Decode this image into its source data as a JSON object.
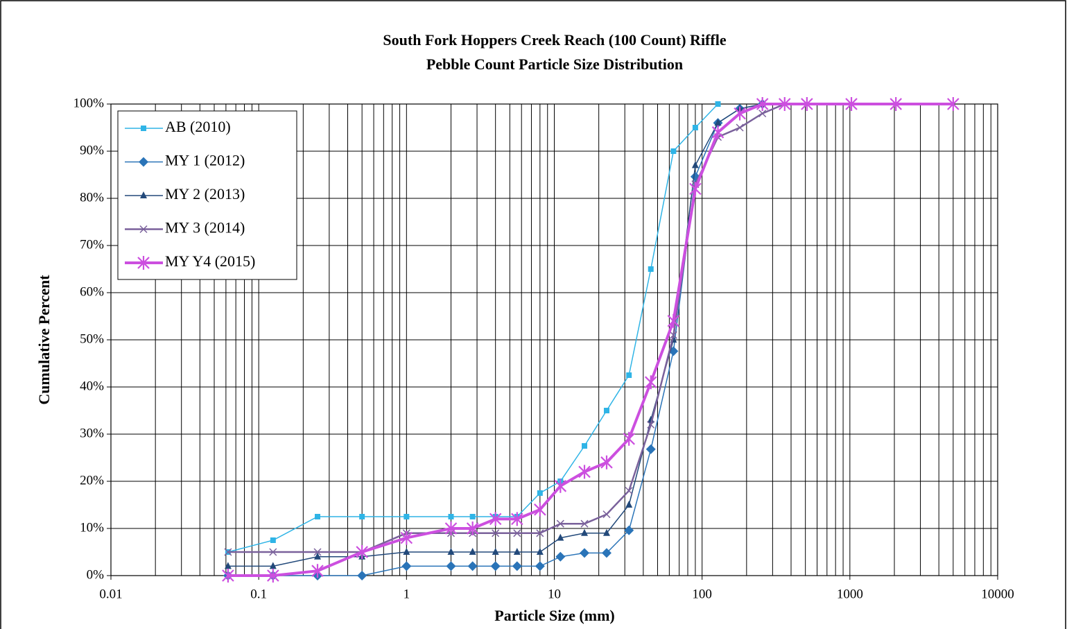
{
  "chart_data": {
    "type": "line",
    "title": "South Fork Hoppers Creek Reach (100 Count) Riffle",
    "subtitle": "Pebble Count Particle Size Distribution",
    "x_label": "Particle Size (mm)",
    "y_label": "Cumulative Percent",
    "xscale": "log",
    "xlim": [
      0.01,
      10000
    ],
    "xticks": [
      0.01,
      0.1,
      1,
      10,
      100,
      1000,
      10000
    ],
    "ylim": [
      0,
      100
    ],
    "yticks": [
      {
        "value": 0,
        "label": "0%"
      },
      {
        "value": 10,
        "label": "10%"
      },
      {
        "value": 20,
        "label": "20%"
      },
      {
        "value": 30,
        "label": "30%"
      },
      {
        "value": 40,
        "label": "40%"
      },
      {
        "value": 50,
        "label": "50%"
      },
      {
        "value": 60,
        "label": "60%"
      },
      {
        "value": 70,
        "label": "70%"
      },
      {
        "value": 80,
        "label": "80%"
      },
      {
        "value": 90,
        "label": "90%"
      },
      {
        "value": 100,
        "label": "100%"
      }
    ],
    "grid": true,
    "legend": "upper left",
    "series": [
      {
        "name": "AB (2010)",
        "color": "#2fb4e6",
        "marker": "square",
        "width": 1.5,
        "x": [
          0.062,
          0.125,
          0.25,
          0.5,
          1,
          2,
          2.8,
          4,
          5.6,
          8,
          11,
          16,
          22.6,
          32,
          45,
          64,
          90,
          128
        ],
        "values": [
          5,
          7.5,
          12.5,
          12.5,
          12.5,
          12.5,
          12.5,
          12.5,
          12.5,
          17.5,
          20,
          27.5,
          35,
          42.5,
          65,
          90,
          95,
          100
        ]
      },
      {
        "name": "MY 1 (2012)",
        "color": "#2a74b8",
        "marker": "diamond",
        "width": 1.5,
        "x": [
          0.062,
          0.125,
          0.25,
          0.5,
          1,
          2,
          2.8,
          4,
          5.6,
          8,
          11,
          16,
          22.6,
          32,
          45,
          64,
          90,
          128,
          180,
          256
        ],
        "values": [
          0,
          0,
          0,
          0,
          2,
          2,
          2,
          2,
          2,
          2,
          4,
          4.8,
          4.8,
          9.6,
          26.8,
          47.6,
          84.6,
          96,
          99,
          100
        ]
      },
      {
        "name": "MY 2 (2013)",
        "color": "#22497a",
        "marker": "triangle",
        "width": 1.5,
        "x": [
          0.062,
          0.125,
          0.25,
          0.5,
          1,
          2,
          2.8,
          4,
          5.6,
          8,
          11,
          16,
          22.6,
          32,
          45,
          64,
          90,
          128,
          180,
          256
        ],
        "values": [
          2,
          2,
          4,
          4,
          5,
          5,
          5,
          5,
          5,
          5,
          8,
          9,
          9,
          15,
          33,
          50,
          87,
          96,
          99,
          100
        ]
      },
      {
        "name": "MY 3 (2014)",
        "color": "#7a619b",
        "marker": "x",
        "width": 2.5,
        "x": [
          0.062,
          0.125,
          0.25,
          0.5,
          1,
          2,
          2.8,
          4,
          5.6,
          8,
          11,
          16,
          22.6,
          32,
          45,
          64,
          90,
          128,
          180,
          256,
          362
        ],
        "values": [
          5,
          5,
          5,
          5,
          9,
          9,
          9,
          9,
          9,
          9,
          11,
          11,
          13,
          18,
          32,
          51,
          83,
          93,
          95,
          98,
          100
        ]
      },
      {
        "name": "MY Y4 (2015)",
        "color": "#cc4fdf",
        "marker": "star",
        "width": 4,
        "x": [
          0.062,
          0.125,
          0.25,
          0.5,
          1,
          2,
          2.8,
          4,
          5.6,
          8,
          11,
          16,
          22.6,
          32,
          45,
          64,
          90,
          128,
          180,
          256,
          362,
          512,
          1024,
          2048,
          5000
        ],
        "values": [
          0,
          0,
          1,
          5,
          8,
          10,
          10,
          12,
          12,
          14,
          19,
          22,
          24,
          29,
          41,
          54,
          82,
          94,
          98,
          100,
          100,
          100,
          100,
          100,
          100
        ]
      }
    ]
  }
}
